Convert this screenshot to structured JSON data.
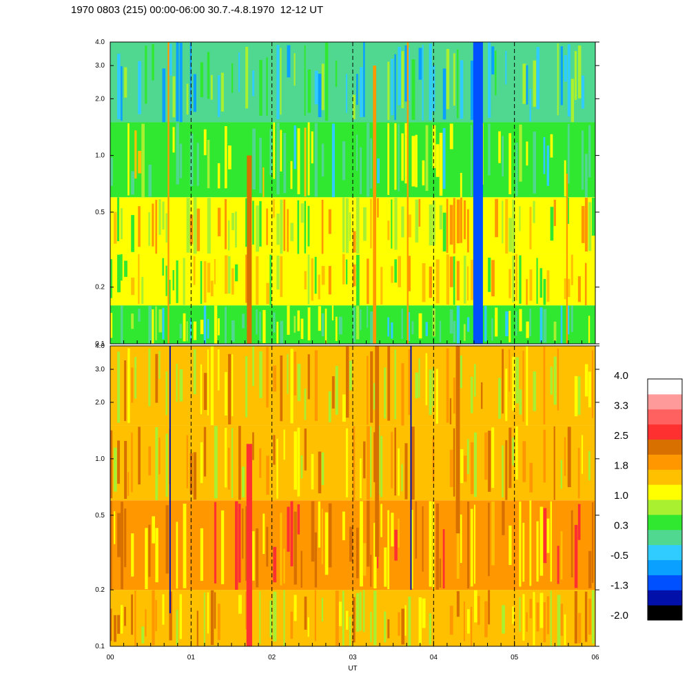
{
  "title": "1970 0803 (215) 00:00-06:00 30.7.-4.8.1970  12-12 UT",
  "chart_data": [
    {
      "type": "heatmap",
      "panel": "upper",
      "x_domain": [
        "00",
        "06"
      ],
      "y_scale": "log",
      "ylim": [
        0.1,
        4.0
      ],
      "y_ticks": [
        "4.0",
        "3.0",
        "2.0",
        "1.0",
        "0.5",
        "0.2",
        "0.1"
      ],
      "y_tick_values": [
        4.0,
        3.0,
        2.0,
        1.0,
        0.5,
        0.2,
        0.1
      ],
      "x_ticks": [
        "00",
        "01",
        "02",
        "03",
        "04",
        "05",
        "06"
      ],
      "bands": [
        {
          "ymin": 0.1,
          "ymax": 0.16,
          "value": 0.5
        },
        {
          "ymin": 0.16,
          "ymax": 0.3,
          "value": 1.1
        },
        {
          "ymin": 0.3,
          "ymax": 0.6,
          "value": 1.3
        },
        {
          "ymin": 0.6,
          "ymax": 1.5,
          "value": 0.6
        },
        {
          "ymin": 1.5,
          "ymax": 4.0,
          "value": 0.1
        }
      ],
      "streaks": [
        {
          "x": 1.72,
          "width": 0.06,
          "ymin": 0.1,
          "ymax": 1.0,
          "value": 2.2
        },
        {
          "x": 3.27,
          "width": 0.04,
          "ymin": 0.1,
          "ymax": 3.0,
          "value": 1.9
        },
        {
          "x": 0.72,
          "width": 0.02,
          "ymin": 0.1,
          "ymax": 4.0,
          "value": 2.0
        },
        {
          "x": 4.55,
          "width": 0.12,
          "ymin": 0.1,
          "ymax": 4.0,
          "value": -0.9
        },
        {
          "x": 3.68,
          "width": 0.02,
          "ymin": 0.1,
          "ymax": 4.0,
          "value": 2.0
        },
        {
          "x": 5.65,
          "width": 0.02,
          "ymin": 0.1,
          "ymax": 0.8,
          "value": 2.1
        }
      ]
    },
    {
      "type": "heatmap",
      "panel": "lower",
      "x_domain": [
        "00",
        "06"
      ],
      "y_scale": "log",
      "ylim": [
        0.1,
        4.0
      ],
      "y_ticks": [
        "4.0",
        "3.0",
        "2.0",
        "1.0",
        "0.5",
        "0.2",
        "0.1"
      ],
      "y_tick_values": [
        4.0,
        3.0,
        2.0,
        1.0,
        0.5,
        0.2,
        0.1
      ],
      "x_ticks": [
        "00",
        "01",
        "02",
        "03",
        "04",
        "05",
        "06"
      ],
      "xlabel": "UT",
      "bands": [
        {
          "ymin": 0.1,
          "ymax": 0.2,
          "value": 1.5
        },
        {
          "ymin": 0.2,
          "ymax": 0.6,
          "value": 1.8
        },
        {
          "ymin": 0.6,
          "ymax": 1.5,
          "value": 1.6
        },
        {
          "ymin": 1.5,
          "ymax": 4.0,
          "value": 1.5
        }
      ],
      "streaks": [
        {
          "x": 1.72,
          "width": 0.07,
          "ymin": 0.1,
          "ymax": 1.2,
          "value": 2.8
        },
        {
          "x": 0.74,
          "width": 0.01,
          "ymin": 0.15,
          "ymax": 4.0,
          "value": -1.3
        },
        {
          "x": 3.72,
          "width": 0.01,
          "ymin": 0.2,
          "ymax": 4.0,
          "value": -1.3
        },
        {
          "x": 4.3,
          "width": 0.05,
          "ymin": 0.4,
          "ymax": 4.0,
          "value": 2.3
        },
        {
          "x": 3.3,
          "width": 0.05,
          "ymin": 0.3,
          "ymax": 4.0,
          "value": 2.2
        }
      ]
    }
  ],
  "colorbar": {
    "labels": [
      "4.0",
      "3.3",
      "2.5",
      "1.8",
      "1.0",
      "0.3",
      "-0.5",
      "-1.3",
      "-2.0"
    ],
    "min": -2.0,
    "max": 4.0,
    "colors": [
      "#000000",
      "#0010a8",
      "#0050ff",
      "#0aa0ff",
      "#30ccff",
      "#50d890",
      "#30e830",
      "#a8f030",
      "#ffff00",
      "#ffc000",
      "#ff9800",
      "#d87000",
      "#ff3030",
      "#ff6060",
      "#ff9a9a",
      "#ffffff"
    ]
  }
}
